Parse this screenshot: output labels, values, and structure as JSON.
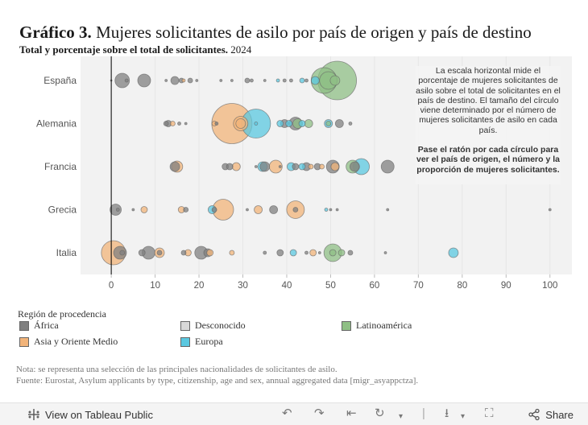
{
  "header": {
    "title_bold": "Gráfico 3.",
    "title_rest": "Mujeres solicitantes de asilo por país de origen y país de destino",
    "subtitle_bold": "Total y porcentaje sobre el total de solicitantes.",
    "subtitle_year": "2024"
  },
  "note": {
    "explanation": "La escala horizontal mide el porcentaje de mujeres solicitantes de asilo sobre el total de solicitantes en el país de destino. El tamaño del círculo viene determinado por el número de mujeres solicitantes de asilo en cada país.",
    "hover": "Pase el ratón por cada círculo para ver el país de origen, el número y la proporción de mujeres solicitantes."
  },
  "legend": {
    "title": "Región de procedencia",
    "items": [
      {
        "label": "África",
        "color": "#808080"
      },
      {
        "label": "Desconocido",
        "color": "#d9d9d9"
      },
      {
        "label": "Latinoamérica",
        "color": "#8fbf85"
      },
      {
        "label": "Asia y Oriente Medio",
        "color": "#f2b47a"
      },
      {
        "label": "Europa",
        "color": "#5bc8e0"
      }
    ]
  },
  "footnotes": {
    "note": "Nota: se representa una selección de las principales nacionalidades de solicitantes de asilo.",
    "source": "Fuente: Eurostat, Asylum applicants by type, citizenship, age and sex, annual aggregated data [migr_asyappctza]."
  },
  "toolbar": {
    "view_label": "View on Tableau Public",
    "share_label": "Share"
  },
  "chart_data": {
    "type": "scatter",
    "xlim": [
      -7,
      105
    ],
    "xticks": [
      0,
      10,
      20,
      30,
      40,
      50,
      60,
      70,
      80,
      90,
      100
    ],
    "categories": [
      "España",
      "Alemania",
      "Francia",
      "Grecia",
      "Italia"
    ],
    "colors": {
      "Africa": "#808080",
      "Desconocido": "#d9d9d9",
      "Latinoamerica": "#8fbf85",
      "Asia": "#f2b47a",
      "Europa": "#5bc8e0"
    },
    "points": [
      {
        "c": 0,
        "x": 0,
        "r": 1,
        "g": "Africa"
      },
      {
        "c": 0,
        "x": 2.5,
        "r": 9,
        "g": "Africa"
      },
      {
        "c": 0,
        "x": 3.5,
        "r": 2,
        "g": "Africa"
      },
      {
        "c": 0,
        "x": 7.5,
        "r": 8,
        "g": "Africa"
      },
      {
        "c": 0,
        "x": 12.5,
        "r": 1.5,
        "g": "Africa"
      },
      {
        "c": 0,
        "x": 14.5,
        "r": 5,
        "g": "Africa"
      },
      {
        "c": 0,
        "x": 16,
        "r": 3,
        "g": "Africa"
      },
      {
        "c": 0,
        "x": 16.5,
        "r": 2,
        "g": "Asia"
      },
      {
        "c": 0,
        "x": 18,
        "r": 3,
        "g": "Africa"
      },
      {
        "c": 0,
        "x": 19.5,
        "r": 1.5,
        "g": "Africa"
      },
      {
        "c": 0,
        "x": 25,
        "r": 1.5,
        "g": "Africa"
      },
      {
        "c": 0,
        "x": 27.5,
        "r": 1.5,
        "g": "Africa"
      },
      {
        "c": 0,
        "x": 31,
        "r": 3,
        "g": "Africa"
      },
      {
        "c": 0,
        "x": 32,
        "r": 2,
        "g": "Africa"
      },
      {
        "c": 0,
        "x": 35,
        "r": 1.5,
        "g": "Africa"
      },
      {
        "c": 0,
        "x": 38,
        "r": 2,
        "g": "Europa"
      },
      {
        "c": 0,
        "x": 39.5,
        "r": 2,
        "g": "Africa"
      },
      {
        "c": 0,
        "x": 41,
        "r": 2,
        "g": "Africa"
      },
      {
        "c": 0,
        "x": 43.5,
        "r": 3,
        "g": "Europa"
      },
      {
        "c": 0,
        "x": 44.5,
        "r": 2,
        "g": "Africa"
      },
      {
        "c": 0,
        "x": 46.5,
        "r": 5,
        "g": "Europa"
      },
      {
        "c": 0,
        "x": 48.5,
        "r": 16,
        "g": "Latinoamerica"
      },
      {
        "c": 0,
        "x": 49.5,
        "r": 11,
        "g": "Latinoamerica"
      },
      {
        "c": 0,
        "x": 51.5,
        "r": 24,
        "g": "Latinoamerica"
      },
      {
        "c": 0,
        "x": 51,
        "r": 6,
        "g": "Latinoamerica"
      },
      {
        "c": 1,
        "x": 12.5,
        "r": 3,
        "g": "Africa"
      },
      {
        "c": 1,
        "x": 13,
        "r": 4,
        "g": "Africa"
      },
      {
        "c": 1,
        "x": 14,
        "r": 3,
        "g": "Asia"
      },
      {
        "c": 1,
        "x": 15.5,
        "r": 2,
        "g": "Africa"
      },
      {
        "c": 1,
        "x": 17,
        "r": 1.5,
        "g": "Africa"
      },
      {
        "c": 1,
        "x": 23.5,
        "r": 3,
        "g": "Asia"
      },
      {
        "c": 1,
        "x": 24,
        "r": 2,
        "g": "Africa"
      },
      {
        "c": 1,
        "x": 27.5,
        "r": 25,
        "g": "Asia"
      },
      {
        "c": 1,
        "x": 29.5,
        "r": 9,
        "g": "Asia"
      },
      {
        "c": 1,
        "x": 29.5,
        "r": 6,
        "g": "Asia"
      },
      {
        "c": 1,
        "x": 33,
        "r": 18,
        "g": "Europa"
      },
      {
        "c": 1,
        "x": 33,
        "r": 2,
        "g": "Europa"
      },
      {
        "c": 1,
        "x": 38.5,
        "r": 4,
        "g": "Europa"
      },
      {
        "c": 1,
        "x": 39.5,
        "r": 5,
        "g": "Africa"
      },
      {
        "c": 1,
        "x": 40.5,
        "r": 4,
        "g": "Europa"
      },
      {
        "c": 1,
        "x": 42,
        "r": 8,
        "g": "Africa"
      },
      {
        "c": 1,
        "x": 42.5,
        "r": 6,
        "g": "Latinoamerica"
      },
      {
        "c": 1,
        "x": 43.5,
        "r": 4,
        "g": "Europa"
      },
      {
        "c": 1,
        "x": 45,
        "r": 5,
        "g": "Latinoamerica"
      },
      {
        "c": 1,
        "x": 49.5,
        "r": 5,
        "g": "Europa"
      },
      {
        "c": 1,
        "x": 49.5,
        "r": 3,
        "g": "Latinoamerica"
      },
      {
        "c": 1,
        "x": 52,
        "r": 5,
        "g": "Africa"
      },
      {
        "c": 1,
        "x": 54.5,
        "r": 2,
        "g": "Africa"
      },
      {
        "c": 2,
        "x": 14.5,
        "r": 6,
        "g": "Africa"
      },
      {
        "c": 2,
        "x": 15,
        "r": 7,
        "g": "Asia"
      },
      {
        "c": 2,
        "x": 26,
        "r": 4,
        "g": "Africa"
      },
      {
        "c": 2,
        "x": 27,
        "r": 4,
        "g": "Africa"
      },
      {
        "c": 2,
        "x": 28.5,
        "r": 5,
        "g": "Asia"
      },
      {
        "c": 2,
        "x": 33,
        "r": 1.5,
        "g": "Africa"
      },
      {
        "c": 2,
        "x": 34.5,
        "r": 6,
        "g": "Europa"
      },
      {
        "c": 2,
        "x": 35,
        "r": 6,
        "g": "Africa"
      },
      {
        "c": 2,
        "x": 37.5,
        "r": 8,
        "g": "Asia"
      },
      {
        "c": 2,
        "x": 38.5,
        "r": 1.5,
        "g": "Africa"
      },
      {
        "c": 2,
        "x": 41,
        "r": 5,
        "g": "Europa"
      },
      {
        "c": 2,
        "x": 42,
        "r": 4,
        "g": "Africa"
      },
      {
        "c": 2,
        "x": 43.5,
        "r": 4,
        "g": "Europa"
      },
      {
        "c": 2,
        "x": 44.5,
        "r": 5,
        "g": "Africa"
      },
      {
        "c": 2,
        "x": 45.5,
        "r": 3,
        "g": "Asia"
      },
      {
        "c": 2,
        "x": 47,
        "r": 4,
        "g": "Africa"
      },
      {
        "c": 2,
        "x": 48,
        "r": 3,
        "g": "Asia"
      },
      {
        "c": 2,
        "x": 50.5,
        "r": 8,
        "g": "Africa"
      },
      {
        "c": 2,
        "x": 51,
        "r": 5,
        "g": "Asia"
      },
      {
        "c": 2,
        "x": 55,
        "r": 8,
        "g": "Latinoamerica"
      },
      {
        "c": 2,
        "x": 55.5,
        "r": 6,
        "g": "Africa"
      },
      {
        "c": 2,
        "x": 57,
        "r": 10,
        "g": "Europa"
      },
      {
        "c": 2,
        "x": 63,
        "r": 8,
        "g": "Africa"
      },
      {
        "c": 3,
        "x": 1,
        "r": 7,
        "g": "Africa"
      },
      {
        "c": 3,
        "x": 1.5,
        "r": 2,
        "g": "Africa"
      },
      {
        "c": 3,
        "x": 5,
        "r": 1.5,
        "g": "Africa"
      },
      {
        "c": 3,
        "x": 7.5,
        "r": 4,
        "g": "Asia"
      },
      {
        "c": 3,
        "x": 16,
        "r": 4,
        "g": "Asia"
      },
      {
        "c": 3,
        "x": 17,
        "r": 3,
        "g": "Africa"
      },
      {
        "c": 3,
        "x": 23,
        "r": 5,
        "g": "Europa"
      },
      {
        "c": 3,
        "x": 23.5,
        "r": 3,
        "g": "Africa"
      },
      {
        "c": 3,
        "x": 25.5,
        "r": 13,
        "g": "Asia"
      },
      {
        "c": 3,
        "x": 31,
        "r": 1.5,
        "g": "Africa"
      },
      {
        "c": 3,
        "x": 33.5,
        "r": 5,
        "g": "Asia"
      },
      {
        "c": 3,
        "x": 37,
        "r": 5,
        "g": "Africa"
      },
      {
        "c": 3,
        "x": 42,
        "r": 11,
        "g": "Asia"
      },
      {
        "c": 3,
        "x": 42,
        "r": 3,
        "g": "Africa"
      },
      {
        "c": 3,
        "x": 49,
        "r": 2,
        "g": "Europa"
      },
      {
        "c": 3,
        "x": 50,
        "r": 1.5,
        "g": "Africa"
      },
      {
        "c": 3,
        "x": 51.5,
        "r": 1.5,
        "g": "Africa"
      },
      {
        "c": 3,
        "x": 63,
        "r": 1.5,
        "g": "Africa"
      },
      {
        "c": 3,
        "x": 100,
        "r": 1.5,
        "g": "Africa"
      },
      {
        "c": 4,
        "x": 0.5,
        "r": 15,
        "g": "Asia"
      },
      {
        "c": 4,
        "x": 2,
        "r": 8,
        "g": "Africa"
      },
      {
        "c": 4,
        "x": 2.5,
        "r": 3,
        "g": "Africa"
      },
      {
        "c": 4,
        "x": 7,
        "r": 4,
        "g": "Africa"
      },
      {
        "c": 4,
        "x": 8.5,
        "r": 8,
        "g": "Africa"
      },
      {
        "c": 4,
        "x": 11,
        "r": 6,
        "g": "Asia"
      },
      {
        "c": 4,
        "x": 11,
        "r": 3,
        "g": "Africa"
      },
      {
        "c": 4,
        "x": 16.5,
        "r": 3,
        "g": "Africa"
      },
      {
        "c": 4,
        "x": 17.5,
        "r": 4,
        "g": "Asia"
      },
      {
        "c": 4,
        "x": 20.5,
        "r": 8,
        "g": "Africa"
      },
      {
        "c": 4,
        "x": 22,
        "r": 5,
        "g": "Africa"
      },
      {
        "c": 4,
        "x": 22.5,
        "r": 4,
        "g": "Asia"
      },
      {
        "c": 4,
        "x": 27.5,
        "r": 3,
        "g": "Asia"
      },
      {
        "c": 4,
        "x": 35,
        "r": 2,
        "g": "Africa"
      },
      {
        "c": 4,
        "x": 38.5,
        "r": 4,
        "g": "Africa"
      },
      {
        "c": 4,
        "x": 41.5,
        "r": 4,
        "g": "Europa"
      },
      {
        "c": 4,
        "x": 44.5,
        "r": 2,
        "g": "Africa"
      },
      {
        "c": 4,
        "x": 46,
        "r": 4,
        "g": "Asia"
      },
      {
        "c": 4,
        "x": 47.5,
        "r": 1.5,
        "g": "Africa"
      },
      {
        "c": 4,
        "x": 50.5,
        "r": 11,
        "g": "Latinoamerica"
      },
      {
        "c": 4,
        "x": 50.5,
        "r": 4,
        "g": "Latinoamerica"
      },
      {
        "c": 4,
        "x": 52.5,
        "r": 4,
        "g": "Latinoamerica"
      },
      {
        "c": 4,
        "x": 54.5,
        "r": 3,
        "g": "Africa"
      },
      {
        "c": 4,
        "x": 62.5,
        "r": 1.5,
        "g": "Africa"
      },
      {
        "c": 4,
        "x": 78,
        "r": 6,
        "g": "Europa"
      }
    ]
  }
}
